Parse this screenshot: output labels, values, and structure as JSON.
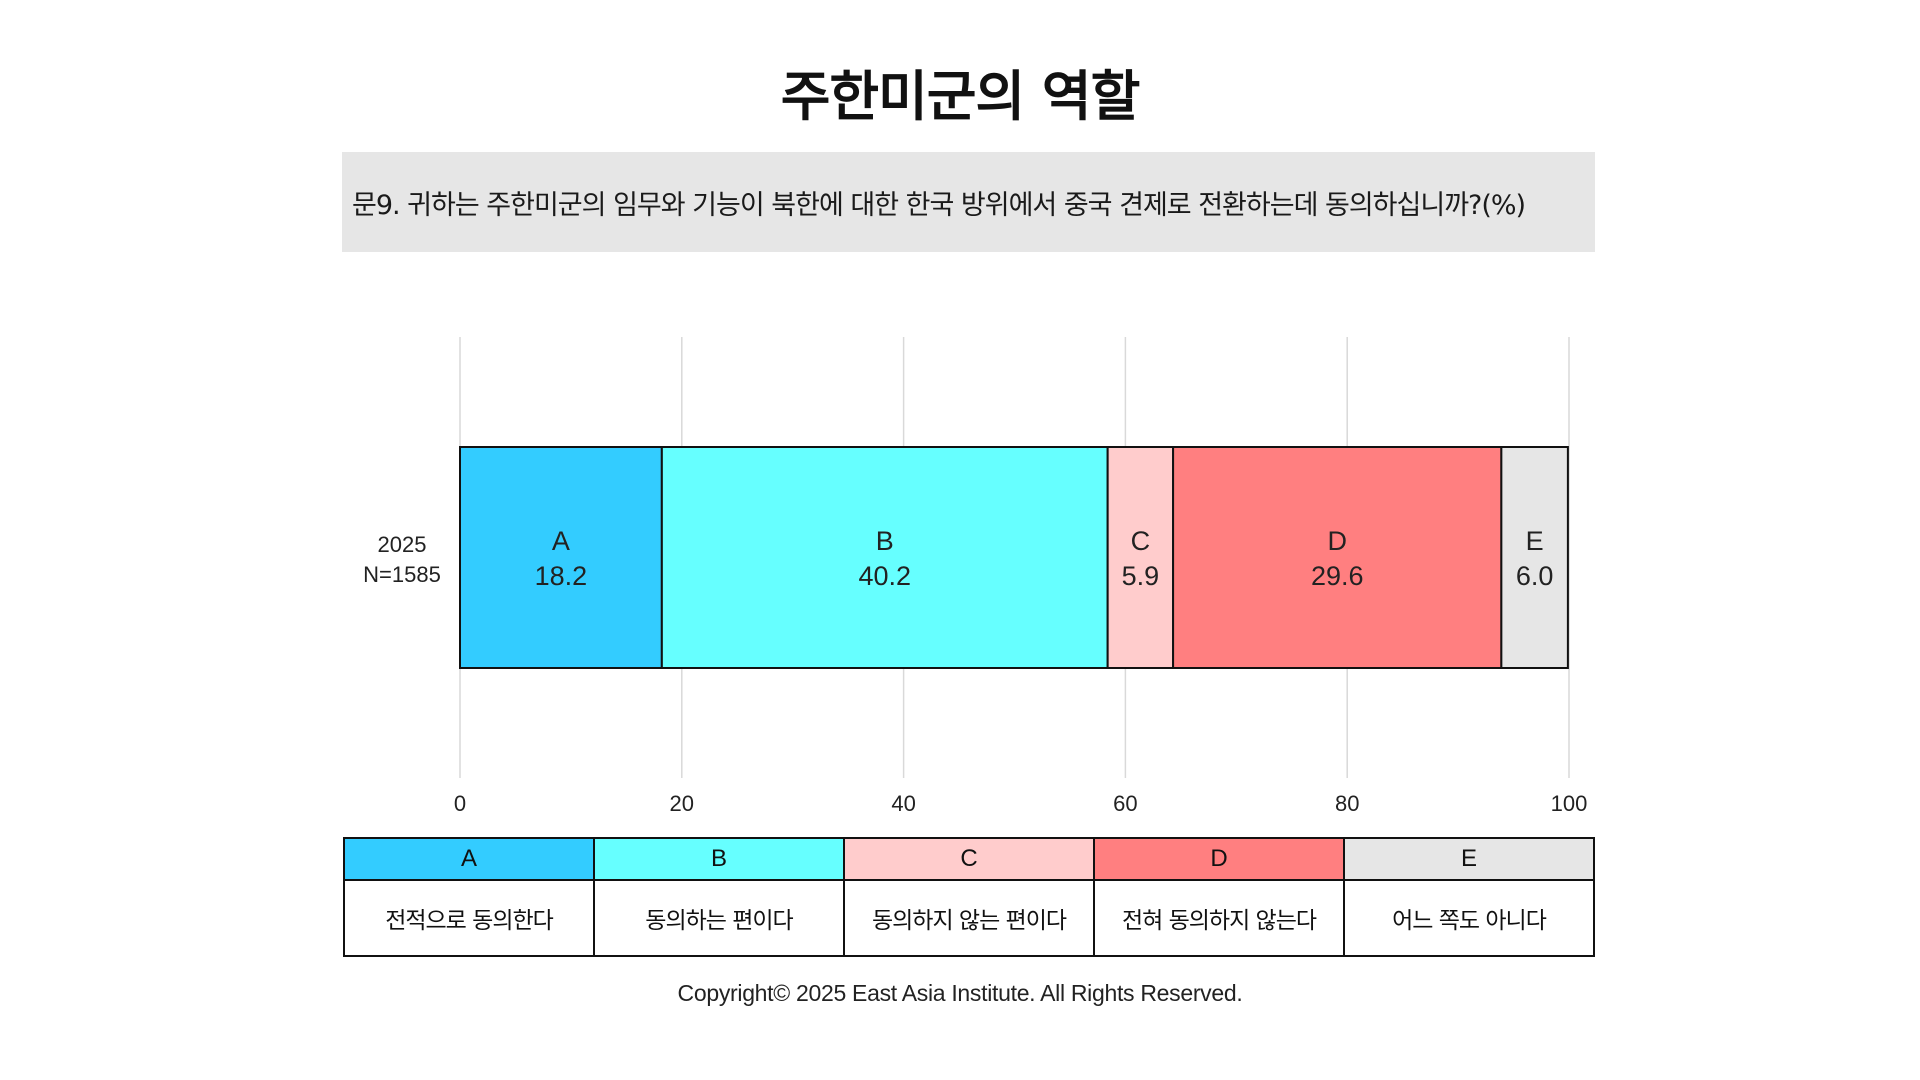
{
  "title": "주한미군의 역할",
  "question": "문9. 귀하는 주한미군의 임무와 기능이 북한에 대한 한국 방위에서 중국 견제로 전환하는데  동의하십니까?(%)",
  "copyright": "Copyright© 2025 East Asia Institute. All Rights Reserved.",
  "chart_data": {
    "type": "bar",
    "orientation": "horizontal-stacked",
    "categories": [
      "2025\nN=1585"
    ],
    "category_lines": [
      [
        "2025",
        "N=1585"
      ]
    ],
    "xlim": [
      0,
      100
    ],
    "xticks": [
      0,
      20,
      40,
      60,
      80,
      100
    ],
    "grid": true,
    "series": [
      {
        "name": "A",
        "values": [
          18.2
        ],
        "color": "#33ccff"
      },
      {
        "name": "B",
        "values": [
          40.2
        ],
        "color": "#66ffff"
      },
      {
        "name": "C",
        "values": [
          5.9
        ],
        "color": "#ffcccc"
      },
      {
        "name": "D",
        "values": [
          29.6
        ],
        "color": "#ff7f80"
      },
      {
        "name": "E",
        "values": [
          6.0
        ],
        "color": "#e6e6e6"
      }
    ],
    "value_labels": [
      "18.2",
      "40.2",
      "5.9",
      "29.6",
      "6.0"
    ]
  },
  "legend": [
    {
      "code": "A",
      "label": "전적으로 동의한다",
      "color": "#33ccff"
    },
    {
      "code": "B",
      "label": "동의하는 편이다",
      "color": "#66ffff"
    },
    {
      "code": "C",
      "label": "동의하지 않는 편이다",
      "color": "#ffcccc"
    },
    {
      "code": "D",
      "label": "전혀 동의하지 않는다",
      "color": "#ff7f80"
    },
    {
      "code": "E",
      "label": "어느 쪽도 아니다",
      "color": "#e6e6e6"
    }
  ]
}
